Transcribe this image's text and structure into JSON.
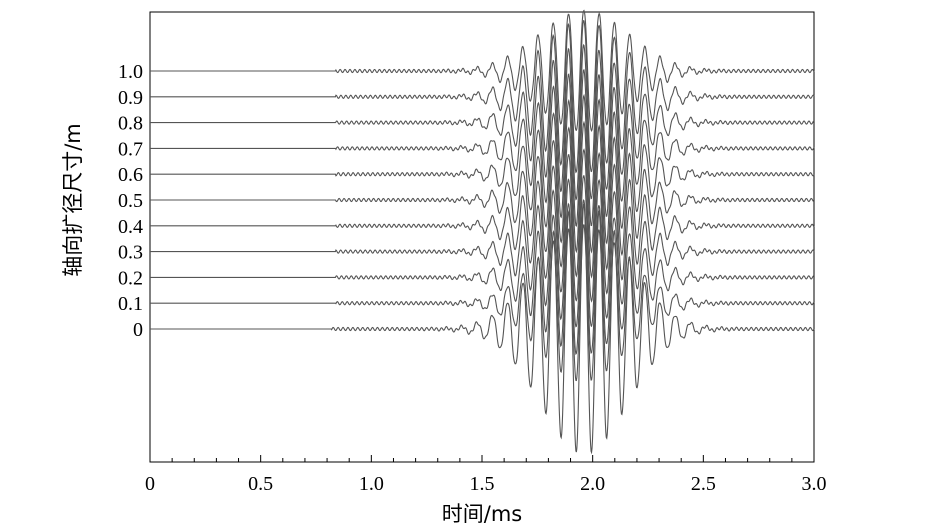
{
  "chart_data": {
    "type": "line",
    "title": "",
    "xlabel": "时间/ms",
    "ylabel": "轴向扩径尺寸/m",
    "xlim": [
      0,
      3.0
    ],
    "x_ticks": [
      "0",
      "0.5",
      "1.0",
      "1.5",
      "2.0",
      "2.5",
      "3.0"
    ],
    "x_tick_values": [
      0,
      0.5,
      1.0,
      1.5,
      2.0,
      2.5,
      3.0
    ],
    "y_ticks": [
      "0",
      "0.1",
      "0.2",
      "0.3",
      "0.4",
      "0.5",
      "0.6",
      "0.7",
      "0.8",
      "0.9",
      "1.0"
    ],
    "y_tick_values": [
      0,
      0.1,
      0.2,
      0.3,
      0.4,
      0.5,
      0.6,
      0.7,
      0.8,
      0.9,
      1.0
    ],
    "ylim": [
      -0.52,
      1.25
    ],
    "grid": false,
    "legend": "none",
    "line_color": "#555555",
    "series": [
      {
        "offset": 0.0,
        "onset_ms": 0.82,
        "peak_time_ms": 1.96,
        "peak_amplitude": 0.48
      },
      {
        "offset": 0.1,
        "onset_ms": 0.84,
        "peak_time_ms": 1.96,
        "peak_amplitude": 0.3
      },
      {
        "offset": 0.2,
        "onset_ms": 0.84,
        "peak_time_ms": 1.96,
        "peak_amplitude": 0.3
      },
      {
        "offset": 0.3,
        "onset_ms": 0.84,
        "peak_time_ms": 1.96,
        "peak_amplitude": 0.3
      },
      {
        "offset": 0.4,
        "onset_ms": 0.84,
        "peak_time_ms": 1.96,
        "peak_amplitude": 0.3
      },
      {
        "offset": 0.5,
        "onset_ms": 0.84,
        "peak_time_ms": 1.96,
        "peak_amplitude": 0.3
      },
      {
        "offset": 0.6,
        "onset_ms": 0.84,
        "peak_time_ms": 1.96,
        "peak_amplitude": 0.3
      },
      {
        "offset": 0.7,
        "onset_ms": 0.84,
        "peak_time_ms": 1.96,
        "peak_amplitude": 0.3
      },
      {
        "offset": 0.8,
        "onset_ms": 0.84,
        "peak_time_ms": 1.96,
        "peak_amplitude": 0.3
      },
      {
        "offset": 0.9,
        "onset_ms": 0.84,
        "peak_time_ms": 1.96,
        "peak_amplitude": 0.3
      },
      {
        "offset": 1.0,
        "onset_ms": 0.84,
        "peak_time_ms": 1.96,
        "peak_amplitude": 0.24
      }
    ]
  }
}
